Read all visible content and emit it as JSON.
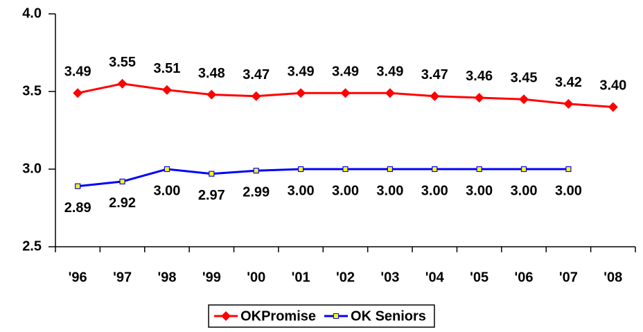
{
  "chart_data": {
    "type": "line",
    "categories": [
      "'96",
      "'97",
      "'98",
      "'99",
      "'00",
      "'01",
      "'02",
      "'03",
      "'04",
      "'05",
      "'06",
      "'07",
      "'08"
    ],
    "series": [
      {
        "name": "OKPromise",
        "color": "#ff0000",
        "marker": "diamond",
        "values": [
          3.49,
          3.55,
          3.51,
          3.48,
          3.47,
          3.49,
          3.49,
          3.49,
          3.47,
          3.46,
          3.45,
          3.42,
          3.4
        ],
        "value_labels": [
          "3.49",
          "3.55",
          "3.51",
          "3.48",
          "3.47",
          "3.49",
          "3.49",
          "3.49",
          "3.47",
          "3.46",
          "3.45",
          "3.42",
          "3.40"
        ],
        "label_position": "above"
      },
      {
        "name": "OK Seniors",
        "color": "#0000ff",
        "marker": "square",
        "marker_fill": "#ffff00",
        "values": [
          2.89,
          2.92,
          3.0,
          2.97,
          2.99,
          3.0,
          3.0,
          3.0,
          3.0,
          3.0,
          3.0,
          3.0,
          null
        ],
        "value_labels": [
          "2.89",
          "2.92",
          "3.00",
          "2.97",
          "2.99",
          "3.00",
          "3.00",
          "3.00",
          "3.00",
          "3.00",
          "3.00",
          "3.00",
          null
        ],
        "label_position": "below"
      }
    ],
    "ylim": [
      2.5,
      4.0
    ],
    "yticks": [
      2.5,
      {
        "value": 3,
        "label": "3.0"
      },
      3.5,
      {
        "value": 4,
        "label": "4.0"
      }
    ],
    "grid": false,
    "legend": "bottom"
  }
}
